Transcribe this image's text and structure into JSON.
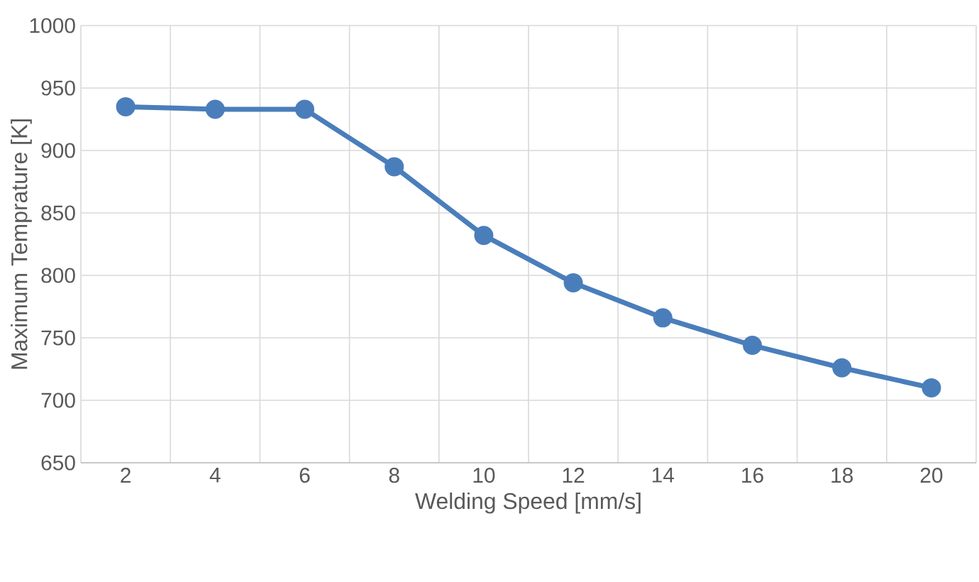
{
  "chart_data": {
    "type": "line",
    "xlabel": "Welding Speed [mm/s]",
    "ylabel": "Maximum Temprature [K]",
    "categories": [
      "2",
      "4",
      "6",
      "8",
      "10",
      "12",
      "14",
      "16",
      "18",
      "20"
    ],
    "values": [
      935,
      933,
      933,
      887,
      832,
      794,
      766,
      744,
      726,
      710
    ],
    "color": "#4a7ebb",
    "ylim": [
      650,
      1000
    ],
    "yticks": [
      650,
      700,
      750,
      800,
      850,
      900,
      950,
      1000
    ],
    "grid": true,
    "marker": "circle",
    "line_style": "solid"
  }
}
